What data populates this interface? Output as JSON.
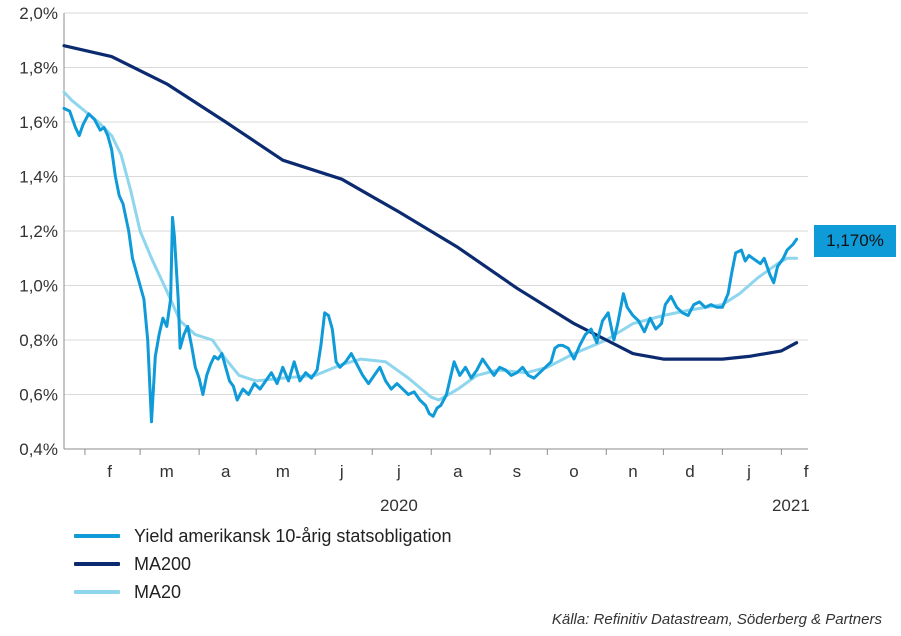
{
  "chart_data": {
    "type": "line",
    "title": "",
    "xlabel": "",
    "ylabel": "",
    "ylim": [
      0.4,
      2.0
    ],
    "y_ticks": [
      "2,0%",
      "1,8%",
      "1,6%",
      "1,4%",
      "1,2%",
      "1,0%",
      "0,8%",
      "0,6%",
      "0,4%"
    ],
    "y_tick_values": [
      2.0,
      1.8,
      1.6,
      1.4,
      1.2,
      1.0,
      0.8,
      0.6,
      0.4
    ],
    "x_domain": [
      "2020-01-21",
      "2021-02-15"
    ],
    "x_month_labels": [
      {
        "label": "f",
        "date": "2020-02-14"
      },
      {
        "label": "m",
        "date": "2020-03-15"
      },
      {
        "label": "a",
        "date": "2020-04-15"
      },
      {
        "label": "m",
        "date": "2020-05-15"
      },
      {
        "label": "j",
        "date": "2020-06-15"
      },
      {
        "label": "j",
        "date": "2020-07-15"
      },
      {
        "label": "a",
        "date": "2020-08-15"
      },
      {
        "label": "s",
        "date": "2020-09-15"
      },
      {
        "label": "o",
        "date": "2020-10-15"
      },
      {
        "label": "n",
        "date": "2020-11-15"
      },
      {
        "label": "d",
        "date": "2020-12-15"
      },
      {
        "label": "j",
        "date": "2021-01-15"
      },
      {
        "label": "f",
        "date": "2021-02-14"
      }
    ],
    "x_year_labels": [
      {
        "label": "2020",
        "date": "2020-07-15"
      },
      {
        "label": "2021",
        "date": "2021-02-06"
      }
    ],
    "grid": "horizontal",
    "last_value_label": "1,170%",
    "series": [
      {
        "name": "Yield amerikansk 10-årig statsobligation",
        "color": "#0f9ad8",
        "points": [
          [
            "2020-01-21",
            1.65
          ],
          [
            "2020-01-24",
            1.64
          ],
          [
            "2020-01-27",
            1.58
          ],
          [
            "2020-01-29",
            1.55
          ],
          [
            "2020-01-31",
            1.59
          ],
          [
            "2020-02-03",
            1.63
          ],
          [
            "2020-02-06",
            1.61
          ],
          [
            "2020-02-09",
            1.57
          ],
          [
            "2020-02-11",
            1.58
          ],
          [
            "2020-02-13",
            1.55
          ],
          [
            "2020-02-15",
            1.5
          ],
          [
            "2020-02-17",
            1.4
          ],
          [
            "2020-02-19",
            1.33
          ],
          [
            "2020-02-21",
            1.3
          ],
          [
            "2020-02-24",
            1.2
          ],
          [
            "2020-02-26",
            1.1
          ],
          [
            "2020-02-28",
            1.05
          ],
          [
            "2020-03-01",
            1.0
          ],
          [
            "2020-03-03",
            0.95
          ],
          [
            "2020-03-05",
            0.8
          ],
          [
            "2020-03-06",
            0.65
          ],
          [
            "2020-03-07",
            0.5
          ],
          [
            "2020-03-09",
            0.74
          ],
          [
            "2020-03-11",
            0.82
          ],
          [
            "2020-03-13",
            0.88
          ],
          [
            "2020-03-15",
            0.85
          ],
          [
            "2020-03-17",
            0.95
          ],
          [
            "2020-03-18",
            1.25
          ],
          [
            "2020-03-19",
            1.18
          ],
          [
            "2020-03-21",
            0.95
          ],
          [
            "2020-03-22",
            0.77
          ],
          [
            "2020-03-24",
            0.82
          ],
          [
            "2020-03-26",
            0.85
          ],
          [
            "2020-03-28",
            0.78
          ],
          [
            "2020-03-30",
            0.7
          ],
          [
            "2020-04-01",
            0.66
          ],
          [
            "2020-04-03",
            0.6
          ],
          [
            "2020-04-05",
            0.67
          ],
          [
            "2020-04-07",
            0.71
          ],
          [
            "2020-04-09",
            0.74
          ],
          [
            "2020-04-11",
            0.73
          ],
          [
            "2020-04-13",
            0.75
          ],
          [
            "2020-04-15",
            0.7
          ],
          [
            "2020-04-17",
            0.65
          ],
          [
            "2020-04-19",
            0.63
          ],
          [
            "2020-04-21",
            0.58
          ],
          [
            "2020-04-24",
            0.62
          ],
          [
            "2020-04-27",
            0.6
          ],
          [
            "2020-04-30",
            0.64
          ],
          [
            "2020-05-03",
            0.62
          ],
          [
            "2020-05-06",
            0.65
          ],
          [
            "2020-05-09",
            0.68
          ],
          [
            "2020-05-12",
            0.64
          ],
          [
            "2020-05-15",
            0.7
          ],
          [
            "2020-05-18",
            0.65
          ],
          [
            "2020-05-21",
            0.72
          ],
          [
            "2020-05-24",
            0.65
          ],
          [
            "2020-05-27",
            0.68
          ],
          [
            "2020-05-30",
            0.66
          ],
          [
            "2020-06-02",
            0.69
          ],
          [
            "2020-06-04",
            0.78
          ],
          [
            "2020-06-06",
            0.9
          ],
          [
            "2020-06-08",
            0.89
          ],
          [
            "2020-06-10",
            0.84
          ],
          [
            "2020-06-12",
            0.72
          ],
          [
            "2020-06-14",
            0.7
          ],
          [
            "2020-06-17",
            0.72
          ],
          [
            "2020-06-20",
            0.75
          ],
          [
            "2020-06-23",
            0.71
          ],
          [
            "2020-06-26",
            0.67
          ],
          [
            "2020-06-29",
            0.64
          ],
          [
            "2020-07-02",
            0.67
          ],
          [
            "2020-07-05",
            0.7
          ],
          [
            "2020-07-08",
            0.65
          ],
          [
            "2020-07-11",
            0.62
          ],
          [
            "2020-07-14",
            0.64
          ],
          [
            "2020-07-17",
            0.62
          ],
          [
            "2020-07-20",
            0.6
          ],
          [
            "2020-07-23",
            0.61
          ],
          [
            "2020-07-26",
            0.58
          ],
          [
            "2020-07-29",
            0.56
          ],
          [
            "2020-07-31",
            0.53
          ],
          [
            "2020-08-02",
            0.52
          ],
          [
            "2020-08-04",
            0.55
          ],
          [
            "2020-08-06",
            0.56
          ],
          [
            "2020-08-09",
            0.6
          ],
          [
            "2020-08-11",
            0.66
          ],
          [
            "2020-08-13",
            0.72
          ],
          [
            "2020-08-16",
            0.67
          ],
          [
            "2020-08-19",
            0.7
          ],
          [
            "2020-08-22",
            0.66
          ],
          [
            "2020-08-25",
            0.69
          ],
          [
            "2020-08-28",
            0.73
          ],
          [
            "2020-08-31",
            0.7
          ],
          [
            "2020-09-03",
            0.67
          ],
          [
            "2020-09-06",
            0.7
          ],
          [
            "2020-09-09",
            0.69
          ],
          [
            "2020-09-12",
            0.67
          ],
          [
            "2020-09-15",
            0.68
          ],
          [
            "2020-09-18",
            0.7
          ],
          [
            "2020-09-21",
            0.67
          ],
          [
            "2020-09-24",
            0.66
          ],
          [
            "2020-09-27",
            0.68
          ],
          [
            "2020-09-30",
            0.7
          ],
          [
            "2020-10-03",
            0.72
          ],
          [
            "2020-10-05",
            0.77
          ],
          [
            "2020-10-07",
            0.78
          ],
          [
            "2020-10-09",
            0.78
          ],
          [
            "2020-10-12",
            0.77
          ],
          [
            "2020-10-15",
            0.73
          ],
          [
            "2020-10-18",
            0.78
          ],
          [
            "2020-10-21",
            0.82
          ],
          [
            "2020-10-24",
            0.84
          ],
          [
            "2020-10-27",
            0.79
          ],
          [
            "2020-10-30",
            0.87
          ],
          [
            "2020-11-02",
            0.9
          ],
          [
            "2020-11-05",
            0.8
          ],
          [
            "2020-11-07",
            0.86
          ],
          [
            "2020-11-10",
            0.97
          ],
          [
            "2020-11-12",
            0.92
          ],
          [
            "2020-11-15",
            0.89
          ],
          [
            "2020-11-18",
            0.87
          ],
          [
            "2020-11-21",
            0.83
          ],
          [
            "2020-11-24",
            0.88
          ],
          [
            "2020-11-27",
            0.84
          ],
          [
            "2020-11-30",
            0.86
          ],
          [
            "2020-12-02",
            0.93
          ],
          [
            "2020-12-05",
            0.96
          ],
          [
            "2020-12-08",
            0.92
          ],
          [
            "2020-12-11",
            0.9
          ],
          [
            "2020-12-14",
            0.89
          ],
          [
            "2020-12-17",
            0.93
          ],
          [
            "2020-12-20",
            0.94
          ],
          [
            "2020-12-23",
            0.92
          ],
          [
            "2020-12-26",
            0.93
          ],
          [
            "2020-12-29",
            0.92
          ],
          [
            "2021-01-01",
            0.92
          ],
          [
            "2021-01-04",
            0.97
          ],
          [
            "2021-01-06",
            1.05
          ],
          [
            "2021-01-08",
            1.12
          ],
          [
            "2021-01-11",
            1.13
          ],
          [
            "2021-01-13",
            1.09
          ],
          [
            "2021-01-15",
            1.11
          ],
          [
            "2021-01-17",
            1.1
          ],
          [
            "2021-01-19",
            1.09
          ],
          [
            "2021-01-21",
            1.08
          ],
          [
            "2021-01-23",
            1.1
          ],
          [
            "2021-01-26",
            1.04
          ],
          [
            "2021-01-28",
            1.01
          ],
          [
            "2021-01-30",
            1.07
          ],
          [
            "2021-02-02",
            1.1
          ],
          [
            "2021-02-04",
            1.13
          ],
          [
            "2021-02-07",
            1.15
          ],
          [
            "2021-02-09",
            1.17
          ]
        ]
      },
      {
        "name": "MA200",
        "color": "#0b2a6f",
        "points": [
          [
            "2020-01-21",
            1.88
          ],
          [
            "2020-02-15",
            1.84
          ],
          [
            "2020-03-15",
            1.74
          ],
          [
            "2020-04-15",
            1.6
          ],
          [
            "2020-05-15",
            1.46
          ],
          [
            "2020-06-15",
            1.39
          ],
          [
            "2020-07-15",
            1.27
          ],
          [
            "2020-08-15",
            1.14
          ],
          [
            "2020-09-15",
            0.99
          ],
          [
            "2020-10-15",
            0.86
          ],
          [
            "2020-11-01",
            0.8
          ],
          [
            "2020-11-15",
            0.75
          ],
          [
            "2020-12-01",
            0.73
          ],
          [
            "2020-12-15",
            0.73
          ],
          [
            "2021-01-01",
            0.73
          ],
          [
            "2021-01-15",
            0.74
          ],
          [
            "2021-02-01",
            0.76
          ],
          [
            "2021-02-09",
            0.79
          ]
        ]
      },
      {
        "name": "MA20",
        "color": "#8ed5ee",
        "points": [
          [
            "2020-01-21",
            1.71
          ],
          [
            "2020-01-25",
            1.68
          ],
          [
            "2020-02-01",
            1.64
          ],
          [
            "2020-02-08",
            1.6
          ],
          [
            "2020-02-15",
            1.55
          ],
          [
            "2020-02-20",
            1.48
          ],
          [
            "2020-02-25",
            1.35
          ],
          [
            "2020-03-01",
            1.2
          ],
          [
            "2020-03-07",
            1.1
          ],
          [
            "2020-03-15",
            0.98
          ],
          [
            "2020-03-22",
            0.87
          ],
          [
            "2020-03-30",
            0.82
          ],
          [
            "2020-04-08",
            0.8
          ],
          [
            "2020-04-15",
            0.73
          ],
          [
            "2020-04-22",
            0.67
          ],
          [
            "2020-05-01",
            0.65
          ],
          [
            "2020-05-15",
            0.66
          ],
          [
            "2020-06-01",
            0.67
          ],
          [
            "2020-06-15",
            0.71
          ],
          [
            "2020-06-25",
            0.73
          ],
          [
            "2020-07-08",
            0.72
          ],
          [
            "2020-07-20",
            0.66
          ],
          [
            "2020-08-01",
            0.59
          ],
          [
            "2020-08-05",
            0.58
          ],
          [
            "2020-08-15",
            0.62
          ],
          [
            "2020-08-25",
            0.67
          ],
          [
            "2020-09-05",
            0.69
          ],
          [
            "2020-09-20",
            0.68
          ],
          [
            "2020-10-01",
            0.7
          ],
          [
            "2020-10-15",
            0.75
          ],
          [
            "2020-11-01",
            0.8
          ],
          [
            "2020-11-15",
            0.86
          ],
          [
            "2020-12-01",
            0.89
          ],
          [
            "2020-12-15",
            0.91
          ],
          [
            "2021-01-01",
            0.93
          ],
          [
            "2021-01-10",
            0.97
          ],
          [
            "2021-01-20",
            1.03
          ],
          [
            "2021-01-30",
            1.08
          ],
          [
            "2021-02-04",
            1.1
          ],
          [
            "2021-02-09",
            1.1
          ]
        ]
      }
    ]
  },
  "source_text": "Källa: Refinitiv Datastream, Söderberg & Partners"
}
